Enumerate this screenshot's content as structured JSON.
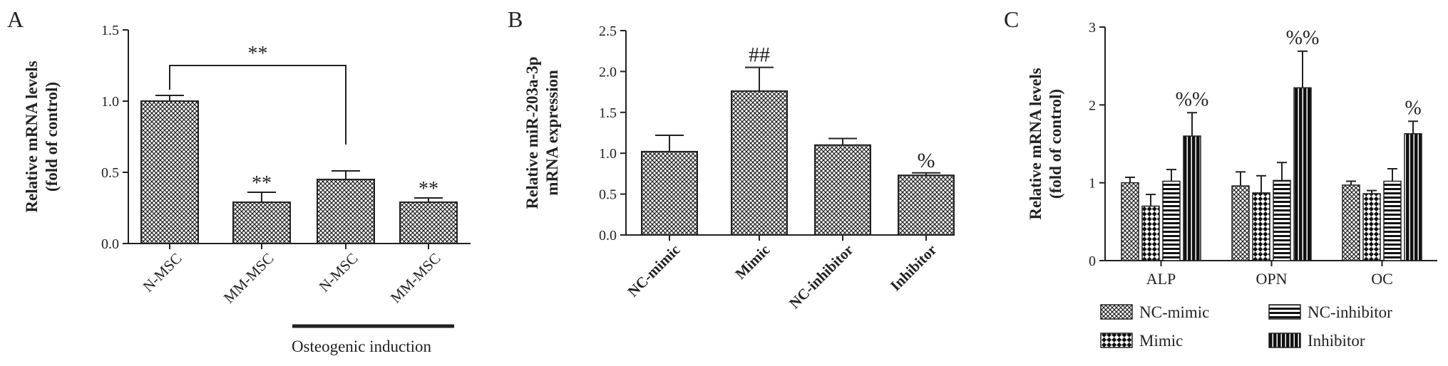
{
  "figure": {
    "width": 2031,
    "height": 514
  },
  "chart_data": [
    {
      "panel": "A",
      "type": "bar",
      "categories": [
        "N-MSC",
        "MM-MSC",
        "N-MSC",
        "MM-MSC"
      ],
      "values": [
        1.0,
        0.29,
        0.45,
        0.29
      ],
      "errors": [
        0.04,
        0.07,
        0.06,
        0.03
      ],
      "annotations": [
        "",
        "**",
        "",
        "**"
      ],
      "ylabel": [
        "Relative mRNA levels",
        "(fold of control)"
      ],
      "ylim": [
        0,
        1.5
      ],
      "yticks": [
        "0.0",
        "0.5",
        "1.0",
        "1.5"
      ],
      "group_label": "Osteogenic induction",
      "bracket_label": "**"
    },
    {
      "panel": "B",
      "type": "bar",
      "categories": [
        "NC-mimic",
        "Mimic",
        "NC-inhibitor",
        "Inhibitor"
      ],
      "values": [
        1.02,
        1.76,
        1.1,
        0.73
      ],
      "errors": [
        0.2,
        0.29,
        0.08,
        0.03
      ],
      "annotations": [
        "",
        "##",
        "",
        "%"
      ],
      "ylabel": [
        "Relative miR-203a-3p",
        "mRNA expression"
      ],
      "ylim": [
        0,
        2.5
      ],
      "yticks": [
        "0.0",
        "0.5",
        "1.0",
        "1.5",
        "2.0",
        "2.5"
      ]
    },
    {
      "panel": "C",
      "type": "bar",
      "categories": [
        "ALP",
        "OPN",
        "OC"
      ],
      "series": [
        {
          "name": "NC-mimic",
          "pattern": "crosshatch",
          "values": [
            1.0,
            0.96,
            0.97
          ],
          "errors": [
            0.07,
            0.18,
            0.05
          ]
        },
        {
          "name": "Mimic",
          "pattern": "checker",
          "values": [
            0.7,
            0.87,
            0.86
          ],
          "errors": [
            0.15,
            0.22,
            0.04
          ]
        },
        {
          "name": "NC-inhibitor",
          "pattern": "hstripes",
          "values": [
            1.02,
            1.03,
            1.02
          ],
          "errors": [
            0.15,
            0.23,
            0.16
          ]
        },
        {
          "name": "Inhibitor",
          "pattern": "vstripes",
          "values": [
            1.6,
            2.22,
            1.63
          ],
          "errors": [
            0.3,
            0.47,
            0.16
          ]
        }
      ],
      "annotations": [
        "%%",
        "%%",
        "%"
      ],
      "ylabel": [
        "Relative mRNA levels",
        "(fold of control)"
      ],
      "ylim": [
        0,
        3
      ],
      "yticks": [
        "0",
        "1",
        "2",
        "3"
      ],
      "legend": "bottom"
    }
  ]
}
